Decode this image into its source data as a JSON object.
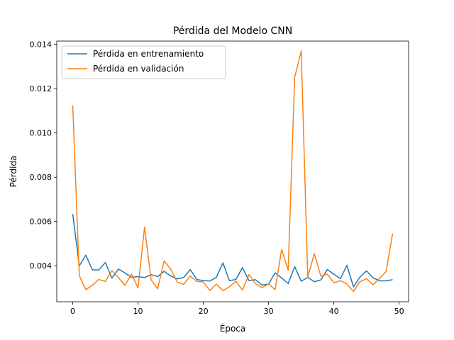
{
  "chart_data": {
    "type": "line",
    "title": "Pérdida del Modelo CNN",
    "xlabel": "Época",
    "ylabel": "Pérdida",
    "xlim": [
      -2.45,
      51.45
    ],
    "ylim": [
      0.002375,
      0.01415
    ],
    "xticks": [
      0,
      10,
      20,
      30,
      40,
      50
    ],
    "yticks": [
      0.004,
      0.006,
      0.008,
      0.01,
      0.012,
      0.014
    ],
    "ytick_labels": [
      "0.004",
      "0.006",
      "0.008",
      "0.010",
      "0.012",
      "0.014"
    ],
    "grid": false,
    "legend_position": "top-left",
    "x": [
      0,
      1,
      2,
      3,
      4,
      5,
      6,
      7,
      8,
      9,
      10,
      11,
      12,
      13,
      14,
      15,
      16,
      17,
      18,
      19,
      20,
      21,
      22,
      23,
      24,
      25,
      26,
      27,
      28,
      29,
      30,
      31,
      32,
      33,
      34,
      35,
      36,
      37,
      38,
      39,
      40,
      41,
      42,
      43,
      44,
      45,
      46,
      47,
      48,
      49
    ],
    "series": [
      {
        "name": "Pérdida en entrenamiento",
        "color": "#1f77b4",
        "values": [
          0.00633,
          0.004,
          0.00448,
          0.00382,
          0.00381,
          0.00415,
          0.00344,
          0.00385,
          0.00368,
          0.00348,
          0.00351,
          0.00347,
          0.0036,
          0.00351,
          0.00375,
          0.00354,
          0.00341,
          0.00347,
          0.00383,
          0.00338,
          0.00333,
          0.00331,
          0.00348,
          0.00413,
          0.00333,
          0.00338,
          0.00392,
          0.00333,
          0.00337,
          0.00313,
          0.00317,
          0.00368,
          0.00345,
          0.0032,
          0.00396,
          0.0033,
          0.00348,
          0.00328,
          0.00336,
          0.00383,
          0.00362,
          0.00342,
          0.00402,
          0.00305,
          0.00349,
          0.00377,
          0.00346,
          0.00332,
          0.00332,
          0.00337
        ]
      },
      {
        "name": "Pérdida en validación",
        "color": "#ff7f0e",
        "values": [
          0.01125,
          0.00356,
          0.00292,
          0.00312,
          0.00338,
          0.00329,
          0.00378,
          0.00347,
          0.00311,
          0.00363,
          0.003,
          0.00575,
          0.00337,
          0.00296,
          0.00422,
          0.00385,
          0.00327,
          0.00316,
          0.00354,
          0.00329,
          0.00327,
          0.00288,
          0.00317,
          0.00288,
          0.00305,
          0.0033,
          0.0029,
          0.0036,
          0.00319,
          0.00301,
          0.00318,
          0.00292,
          0.00474,
          0.0038,
          0.01252,
          0.0137,
          0.00348,
          0.00455,
          0.00354,
          0.00362,
          0.00323,
          0.00333,
          0.00318,
          0.00284,
          0.00328,
          0.00342,
          0.00314,
          0.00343,
          0.00374,
          0.00546
        ]
      }
    ]
  }
}
